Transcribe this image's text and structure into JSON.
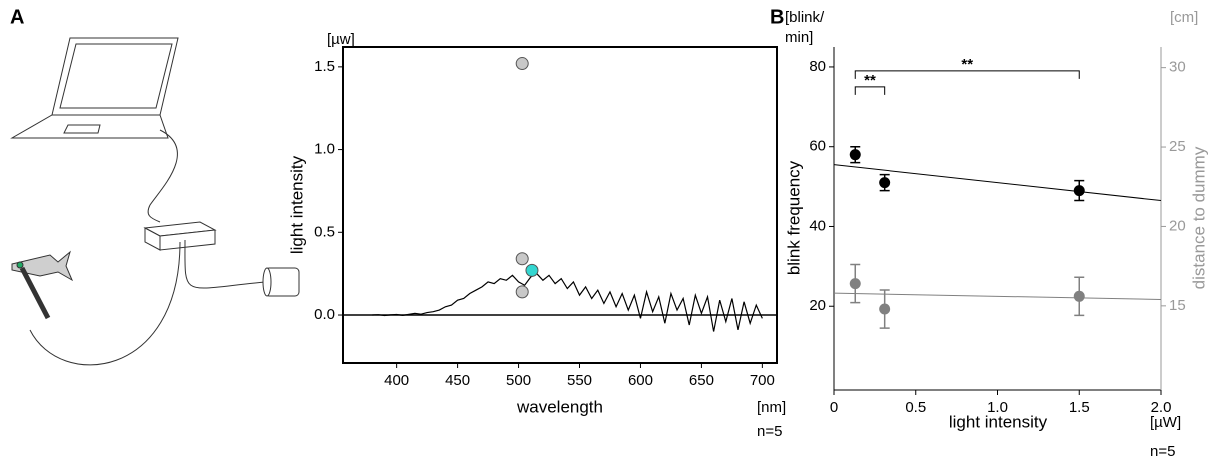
{
  "chart_data": [
    {
      "panel": "A",
      "type": "line",
      "frame": true,
      "zero_line": true,
      "x_label": "wavelength",
      "y_label": "light intensity",
      "x_unit": "[nm]",
      "y_unit": "[µw]",
      "note": "n=5",
      "xlim": [
        356,
        712
      ],
      "ylim": [
        -0.29,
        1.62
      ],
      "xticks": [
        400,
        450,
        500,
        550,
        600,
        650,
        700
      ],
      "yticks": [
        {
          "value": 0,
          "label": "0.0"
        },
        0.5,
        {
          "value": 1,
          "label": "1.0"
        },
        1.5
      ],
      "series": [
        {
          "type": "line",
          "color": "#000000",
          "x": [
            380,
            385,
            390,
            395,
            400,
            405,
            410,
            415,
            420,
            425,
            430,
            435,
            440,
            445,
            450,
            455,
            460,
            465,
            470,
            475,
            480,
            485,
            490,
            495,
            500,
            505,
            510,
            515,
            520,
            525,
            530,
            535,
            540,
            545,
            550,
            555,
            560,
            565,
            570,
            575,
            580,
            585,
            590,
            595,
            600,
            605,
            610,
            615,
            620,
            625,
            630,
            635,
            640,
            645,
            650,
            655,
            660,
            665,
            670,
            675,
            680,
            685,
            690,
            695,
            700
          ],
          "values": [
            0,
            0.002,
            -0.003,
            0.001,
            0.003,
            -0.002,
            0.004,
            0.01,
            0.005,
            0.015,
            0.02,
            0.03,
            0.05,
            0.06,
            0.09,
            0.1,
            0.13,
            0.15,
            0.17,
            0.2,
            0.19,
            0.22,
            0.21,
            0.24,
            0.2,
            0.18,
            0.23,
            0.25,
            0.21,
            0.24,
            0.19,
            0.22,
            0.16,
            0.2,
            0.12,
            0.17,
            0.1,
            0.15,
            0.07,
            0.14,
            0.05,
            0.13,
            0.03,
            0.12,
            -0.02,
            0.14,
            0.02,
            0.11,
            -0.05,
            0.13,
            0.03,
            0.1,
            -0.06,
            0.12,
            0.01,
            0.11,
            -0.1,
            0.09,
            -0.04,
            0.1,
            -0.09,
            0.08,
            -0.05,
            0.06,
            -0.02
          ]
        },
        {
          "type": "scatter",
          "color": "#c8c8c8",
          "x": [
            503,
            503,
            503
          ],
          "values": [
            1.52,
            0.34,
            0.14
          ]
        },
        {
          "type": "scatter",
          "color": "#33d6d0",
          "x": [
            511
          ],
          "values": [
            0.27
          ]
        }
      ]
    },
    {
      "panel": "B",
      "type": "scatter",
      "frame": false,
      "x_label": "light intensity",
      "y_label": "blink frequency",
      "y2_label": "distance to dummy",
      "x_unit": "[µW]",
      "y_unit": [
        "[blink/",
        "min]"
      ],
      "y2_unit": "[cm]",
      "note": "n=5",
      "xlim": [
        0,
        2
      ],
      "ylim": [
        -1,
        85
      ],
      "y2lim": [
        9.7,
        31.3
      ],
      "xticks": [
        0,
        0.5,
        {
          "value": 1,
          "label": "1.0"
        },
        1.5,
        {
          "value": 2,
          "label": "2.0"
        }
      ],
      "yticks": [
        20,
        40,
        60,
        80
      ],
      "y2ticks": [
        15,
        20,
        25,
        30
      ],
      "y2_color": "#999999",
      "series": [
        {
          "type": "scatter",
          "color": "#000000",
          "x": [
            0.13,
            0.31,
            1.5
          ],
          "values": [
            58,
            51,
            49
          ],
          "errors": [
            2,
            2,
            2.5
          ]
        },
        {
          "type": "line",
          "color": "#000000",
          "x": [
            0,
            2
          ],
          "values": [
            55.5,
            46.5
          ]
        },
        {
          "type": "scatter",
          "color": "#808080",
          "axis": "y2",
          "x": [
            0.13,
            0.31,
            1.5
          ],
          "values": [
            16.4,
            14.8,
            15.6
          ],
          "errors": [
            1.2,
            1.2,
            1.2
          ]
        },
        {
          "type": "line",
          "color": "#808080",
          "axis": "y2",
          "x": [
            0,
            2
          ],
          "values": [
            15.8,
            15.4
          ]
        }
      ],
      "annotations": [
        {
          "text": "**",
          "x": [
            0.13,
            0.31
          ],
          "y": 75
        },
        {
          "text": "**",
          "x": [
            0.13,
            1.5
          ],
          "y": 79
        }
      ]
    }
  ]
}
